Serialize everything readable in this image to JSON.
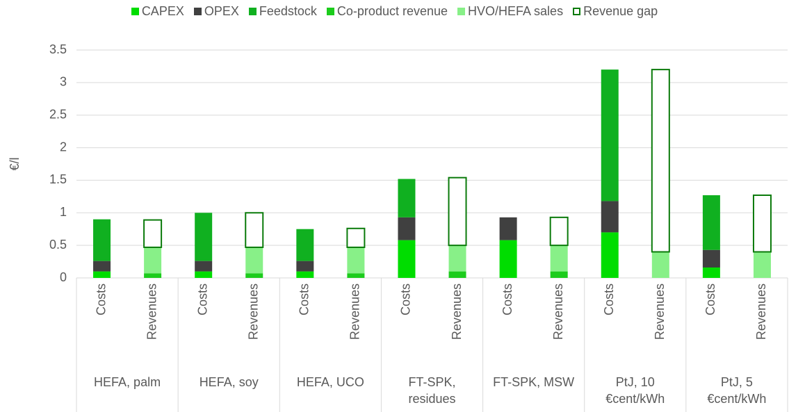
{
  "chart_data": {
    "type": "stacked_bar",
    "y_label": "€/l",
    "categories": [
      "Costs",
      "Revenues",
      "Costs",
      "Revenues",
      "Costs",
      "Revenues",
      "Costs",
      "Revenues",
      "Costs",
      "Revenues",
      "Costs",
      "Revenues",
      "Costs",
      "Revenues"
    ],
    "groups": [
      "HEFA, palm",
      "HEFA, soy",
      "HEFA, UCO",
      "FT-SPK, residues",
      "FT-SPK, MSW",
      "PtJ, 10 €cent/kWh",
      "PtJ, 5 €cent/kWh"
    ],
    "series": [
      {
        "name": "CAPEX",
        "color": "#00dd00",
        "values": [
          0.1,
          null,
          0.1,
          null,
          0.1,
          null,
          0.58,
          null,
          0.58,
          null,
          0.7,
          null,
          0.16,
          null
        ]
      },
      {
        "name": "OPEX",
        "color": "#404040",
        "values": [
          0.16,
          null,
          0.16,
          null,
          0.16,
          null,
          0.35,
          null,
          0.35,
          null,
          0.48,
          null,
          0.27,
          null
        ]
      },
      {
        "name": "Feedstock",
        "color": "#10b020",
        "values": [
          0.64,
          null,
          0.74,
          null,
          0.49,
          null,
          0.59,
          null,
          0,
          null,
          2.02,
          null,
          0.84,
          null
        ]
      },
      {
        "name": "Co-product revenue",
        "color": "#1ccc1c",
        "values": [
          null,
          0.07,
          null,
          0.07,
          null,
          0.07,
          null,
          0.1,
          null,
          0.1,
          null,
          0,
          null,
          0
        ]
      },
      {
        "name": "HVO/HEFA sales",
        "color": "#88f088",
        "values": [
          null,
          0.4,
          null,
          0.4,
          null,
          0.4,
          null,
          0.4,
          null,
          0.4,
          null,
          0.4,
          null,
          0.4
        ]
      },
      {
        "name": "Revenue gap",
        "color": "#0a7a0a",
        "outline": true,
        "values": [
          null,
          0.42,
          null,
          0.53,
          null,
          0.29,
          null,
          1.04,
          null,
          0.43,
          null,
          2.8,
          null,
          0.87
        ]
      }
    ],
    "ylim": [
      0,
      3.5
    ],
    "yticks": [
      0,
      0.5,
      1,
      1.5,
      2,
      2.5,
      3,
      3.5
    ],
    "grid": true,
    "legend": "top"
  }
}
